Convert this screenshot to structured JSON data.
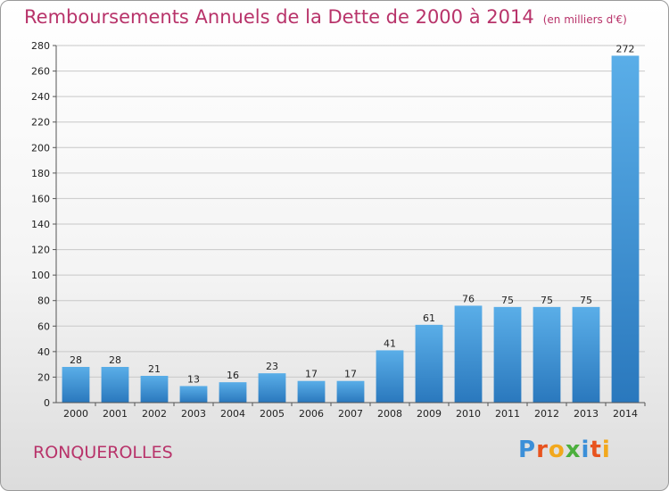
{
  "header": {
    "title": "Remboursements Annuels de la Dette de 2000 à 2014",
    "unit": "(en milliers d'€)"
  },
  "footer": {
    "commune": "RONQUEROLLES",
    "logo": "Proxiti"
  },
  "colors": {
    "title": "#b8336a",
    "bar_top": "#5aaee8",
    "bar_bottom": "#2a78bd",
    "grid": "#c8c8c8"
  },
  "chart_data": {
    "type": "bar",
    "title": "Remboursements Annuels de la Dette de 2000 à 2014",
    "categories": [
      "2000",
      "2001",
      "2002",
      "2003",
      "2004",
      "2005",
      "2006",
      "2007",
      "2008",
      "2009",
      "2010",
      "2011",
      "2012",
      "2013",
      "2014"
    ],
    "values": [
      28,
      28,
      21,
      13,
      16,
      23,
      17,
      17,
      41,
      61,
      76,
      75,
      75,
      75,
      272
    ],
    "ylim": [
      0,
      280
    ],
    "yticks": [
      0,
      20,
      40,
      60,
      80,
      100,
      120,
      140,
      160,
      180,
      200,
      220,
      240,
      260,
      280
    ],
    "xlabel": "",
    "ylabel": "",
    "grid": true,
    "legend": "none"
  }
}
